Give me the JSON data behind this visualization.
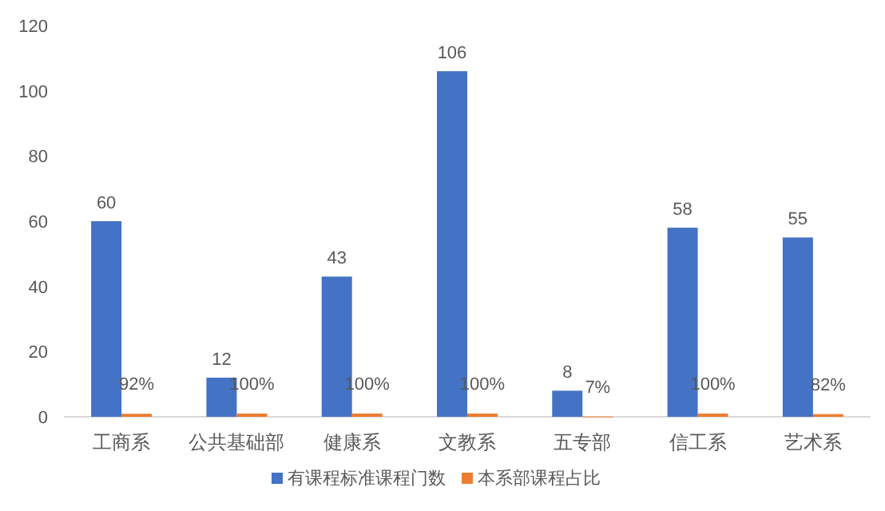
{
  "chart_data": {
    "type": "bar",
    "categories": [
      "工商系",
      "公共基础部",
      "健康系",
      "文教系",
      "五专部",
      "信工系",
      "艺术系"
    ],
    "series": [
      {
        "name": "有课程标准课程门数",
        "color": "#4472c4",
        "values": [
          60,
          12,
          43,
          106,
          8,
          58,
          55
        ],
        "value_labels": [
          "60",
          "12",
          "43",
          "106",
          "8",
          "58",
          "55"
        ]
      },
      {
        "name": "本系部课程占比",
        "color": "#ed7d31",
        "values": [
          0.92,
          1,
          1,
          1,
          0.07,
          1,
          0.82
        ],
        "value_labels": [
          "92%",
          "100%",
          "100%",
          "100%",
          "7%",
          "100%",
          "82%"
        ]
      }
    ],
    "ylim": [
      0,
      120
    ],
    "yticks": [
      0,
      20,
      40,
      60,
      80,
      100,
      120
    ],
    "grid": false,
    "legend": "bottom"
  }
}
